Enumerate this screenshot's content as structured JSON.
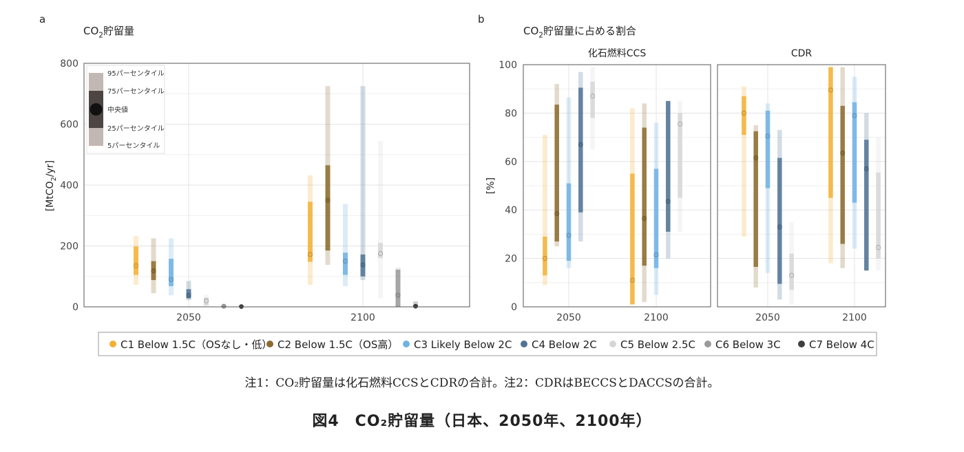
{
  "panel_a": {
    "letter": "a",
    "title_pre": "CO",
    "title_sub": "2",
    "title_post": "貯留量"
  },
  "panel_b": {
    "letter": "b",
    "title_pre": "CO",
    "title_sub": "2",
    "title_post": "貯留量に占める割合"
  },
  "legend_box_a": {
    "p95": "95パーセンタイル",
    "p75": "75パーセンタイル",
    "median": "中央値",
    "p25": "25パーセンタイル",
    "p5": "5パーセンタイル"
  },
  "scenarios": [
    {
      "label": "C1 Below 1.5C（OSなし・低）",
      "color": "#f2b134"
    },
    {
      "label": "C2 Below 1.5C（OS高）",
      "color": "#8c6b2e"
    },
    {
      "label": "C3 Likely Below 2C",
      "color": "#6fb2e4"
    },
    {
      "label": "C4 Below 2C",
      "color": "#4f7394"
    },
    {
      "label": "C5 Below 2.5C",
      "color": "#d6d6d6"
    },
    {
      "label": "C6 Below 3C",
      "color": "#9a9a9a"
    },
    {
      "label": "C7 Below 4C",
      "color": "#3e3e3e"
    }
  ],
  "note": "注1：CO₂貯留量は化石燃料CCSとCDRの合計。注2：CDRはBECCSとDACCSの合計。",
  "caption": "図4　CO₂貯留量（日本、2050年、2100年）",
  "chart_data": [
    {
      "type": "boxplot-range",
      "panel": "a",
      "ylabel_pre": "[MtCO",
      "ylabel_sub": "2",
      "ylabel_post": "/yr]",
      "ylim": [
        0,
        800
      ],
      "yticks": [
        0,
        200,
        400,
        600,
        800
      ],
      "categories": [
        "2050",
        "2100"
      ],
      "grid": true,
      "series": [
        {
          "name": "C1 Below 1.5C（OSなし・低）",
          "values": [
            {
              "p5": 72,
              "p25": 105,
              "median": 135,
              "p75": 198,
              "p95": 232
            },
            {
              "p5": 72,
              "p25": 148,
              "median": 172,
              "p75": 345,
              "p95": 432
            }
          ]
        },
        {
          "name": "C2 Below 1.5C（OS高）",
          "values": [
            {
              "p5": 45,
              "p25": 88,
              "median": 118,
              "p75": 150,
              "p95": 225
            },
            {
              "p5": 138,
              "p25": 185,
              "median": 350,
              "p75": 465,
              "p95": 725
            }
          ]
        },
        {
          "name": "C3 Likely Below 2C",
          "values": [
            {
              "p5": 38,
              "p25": 68,
              "median": 90,
              "p75": 158,
              "p95": 225
            },
            {
              "p5": 68,
              "p25": 105,
              "median": 150,
              "p75": 178,
              "p95": 338
            }
          ]
        },
        {
          "name": "C4 Below 2C",
          "values": [
            {
              "p5": 22,
              "p25": 28,
              "median": 38,
              "p75": 58,
              "p95": 85
            },
            {
              "p5": 88,
              "p25": 100,
              "median": 138,
              "p75": 172,
              "p95": 725
            }
          ]
        },
        {
          "name": "C5 Below 2.5C",
          "values": [
            {
              "p5": 2,
              "p25": 5,
              "median": 20,
              "p75": 30,
              "p95": 40
            },
            {
              "p5": 28,
              "p25": 160,
              "median": 175,
              "p75": 210,
              "p95": 545
            }
          ]
        },
        {
          "name": "C6 Below 3C",
          "values": [
            {
              "p5": 0,
              "p25": 0,
              "median": 2,
              "p75": 4,
              "p95": 6
            },
            {
              "p5": 0,
              "p25": 0,
              "median": 38,
              "p75": 122,
              "p95": 128
            }
          ]
        },
        {
          "name": "C7 Below 4C",
          "values": [
            {
              "p5": 0,
              "p25": 0,
              "median": 1,
              "p75": 2,
              "p95": 4
            },
            {
              "p5": 0,
              "p25": 0,
              "median": 2,
              "p75": 6,
              "p95": 18
            }
          ]
        }
      ]
    },
    {
      "type": "boxplot-range",
      "panel": "b",
      "ylabel": "[%]",
      "ylim": [
        0,
        100
      ],
      "yticks": [
        0,
        20,
        40,
        60,
        80,
        100
      ],
      "grid": true,
      "facets": [
        {
          "title": "化石燃料CCS",
          "categories": [
            "2050",
            "2100"
          ],
          "series": [
            {
              "name": "C1 Below 1.5C（OSなし・低）",
              "values": [
                {
                  "p5": 9,
                  "p25": 13,
                  "median": 20,
                  "p75": 29,
                  "p95": 71
                },
                {
                  "p5": 1,
                  "p25": 1,
                  "median": 11,
                  "p75": 55,
                  "p95": 82
                }
              ]
            },
            {
              "name": "C2 Below 1.5C（OS高）",
              "values": [
                {
                  "p5": 25,
                  "p25": 27,
                  "median": 38.5,
                  "p75": 83.5,
                  "p95": 92
                },
                {
                  "p5": 2,
                  "p25": 17,
                  "median": 36.5,
                  "p75": 74,
                  "p95": 84
                }
              ]
            },
            {
              "name": "C3 Likely Below 2C",
              "values": [
                {
                  "p5": 16,
                  "p25": 19,
                  "median": 29.5,
                  "p75": 51,
                  "p95": 86.5
                },
                {
                  "p5": 5,
                  "p25": 16,
                  "median": 21.5,
                  "p75": 57,
                  "p95": 76
                }
              ]
            },
            {
              "name": "C4 Below 2C",
              "values": [
                {
                  "p5": 27,
                  "p25": 39,
                  "median": 67,
                  "p75": 90.5,
                  "p95": 97
                },
                {
                  "p5": 20,
                  "p25": 31,
                  "median": 43.5,
                  "p75": 85,
                  "p95": 85
                }
              ]
            },
            {
              "name": "C5 Below 2.5C",
              "values": [
                {
                  "p5": 65,
                  "p25": 78,
                  "median": 87,
                  "p75": 93,
                  "p95": 99
                },
                {
                  "p5": 31,
                  "p25": 45,
                  "median": 75.5,
                  "p75": 80,
                  "p95": 85
                }
              ]
            }
          ]
        },
        {
          "title": "CDR",
          "categories": [
            "2050",
            "2100"
          ],
          "series": [
            {
              "name": "C1 Below 1.5C（OSなし・低）",
              "values": [
                {
                  "p5": 29,
                  "p25": 71,
                  "median": 80,
                  "p75": 87,
                  "p95": 91
                },
                {
                  "p5": 18,
                  "p25": 45,
                  "median": 89.5,
                  "p75": 99,
                  "p95": 99
                }
              ]
            },
            {
              "name": "C2 Below 1.5C（OS高）",
              "values": [
                {
                  "p5": 8,
                  "p25": 16.5,
                  "median": 61.5,
                  "p75": 72.5,
                  "p95": 75
                },
                {
                  "p5": 16,
                  "p25": 26,
                  "median": 63.5,
                  "p75": 83,
                  "p95": 99
                }
              ]
            },
            {
              "name": "C3 Likely Below 2C",
              "values": [
                {
                  "p5": 14,
                  "p25": 49,
                  "median": 70.5,
                  "p75": 81,
                  "p95": 84
                },
                {
                  "p5": 24,
                  "p25": 43,
                  "median": 79,
                  "p75": 84.5,
                  "p95": 95
                }
              ]
            },
            {
              "name": "C4 Below 2C",
              "values": [
                {
                  "p5": 3,
                  "p25": 9.5,
                  "median": 33,
                  "p75": 61.5,
                  "p95": 73
                },
                {
                  "p5": 15,
                  "p25": 15,
                  "median": 57,
                  "p75": 69,
                  "p95": 80
                }
              ]
            },
            {
              "name": "C5 Below 2.5C",
              "values": [
                {
                  "p5": 1,
                  "p25": 7,
                  "median": 13,
                  "p75": 22,
                  "p95": 35
                },
                {
                  "p5": 15,
                  "p25": 20,
                  "median": 24.5,
                  "p75": 55.5,
                  "p95": 70
                }
              ]
            }
          ]
        }
      ]
    }
  ]
}
